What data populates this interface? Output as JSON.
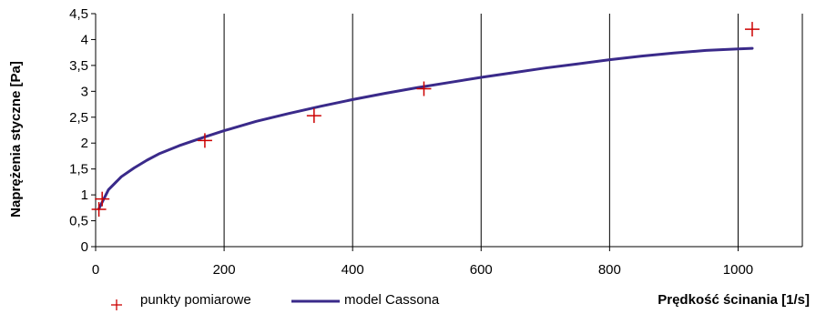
{
  "chart_data": {
    "type": "line",
    "title": "",
    "xlabel": "Prędkość ścinania [1/s]",
    "ylabel": "Naprężenia styczne [Pa]",
    "xlim": [
      0,
      1100
    ],
    "ylim": [
      0,
      4.5
    ],
    "x_ticks": [
      0,
      200,
      400,
      600,
      800,
      1000
    ],
    "x_tick_labels": [
      "0",
      "200",
      "400",
      "600",
      "800",
      "1000"
    ],
    "y_ticks": [
      0,
      0.5,
      1,
      1.5,
      2,
      2.5,
      3,
      3.5,
      4,
      4.5
    ],
    "y_tick_labels": [
      "0",
      "0,5",
      "1",
      "1,5",
      "2",
      "2,5",
      "3",
      "3,5",
      "4",
      "4,5"
    ],
    "grid": "vertical",
    "legend_position": "bottom",
    "series": [
      {
        "name": "punkty pomiarowe",
        "kind": "scatter",
        "marker": "plus",
        "color": "#cc0000",
        "x": [
          5.1,
          10.2,
          170,
          340,
          511,
          1022
        ],
        "y": [
          0.72,
          0.92,
          2.05,
          2.53,
          3.05,
          4.2
        ]
      },
      {
        "name": "model Cassona",
        "kind": "line",
        "color": "#3a2a8a",
        "x": [
          5,
          20,
          40,
          60,
          80,
          100,
          130,
          170,
          200,
          250,
          300,
          350,
          400,
          450,
          500,
          550,
          600,
          650,
          700,
          750,
          800,
          850,
          900,
          950,
          1000,
          1022
        ],
        "y": [
          0.73,
          1.1,
          1.35,
          1.52,
          1.67,
          1.8,
          1.95,
          2.12,
          2.24,
          2.42,
          2.57,
          2.71,
          2.84,
          2.96,
          3.07,
          3.17,
          3.27,
          3.36,
          3.45,
          3.53,
          3.61,
          3.68,
          3.74,
          3.79,
          3.82,
          3.83
        ]
      }
    ]
  }
}
